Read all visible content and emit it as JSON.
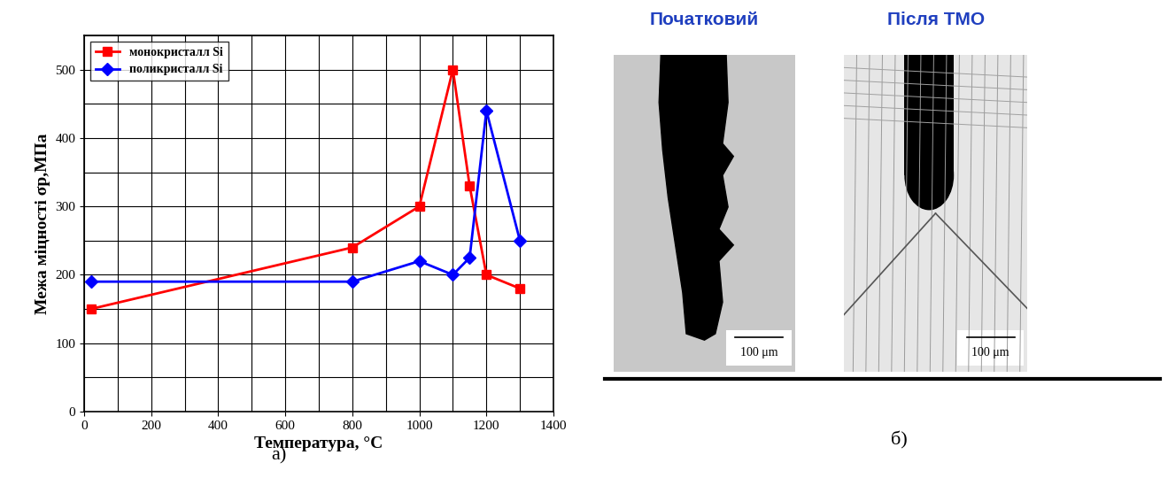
{
  "chart_data": {
    "type": "line",
    "x_label": "Температура, °C",
    "y_label": "Межа міцності σр,МПа",
    "xlim": [
      0,
      1400
    ],
    "xticks": [
      0,
      200,
      400,
      600,
      800,
      1000,
      1200,
      1400
    ],
    "ylim": [
      0,
      550
    ],
    "yticks": [
      0,
      100,
      200,
      300,
      400,
      500
    ],
    "grid": true,
    "legend": "upper left",
    "series": [
      {
        "name": "монокристалл Si",
        "color": "#ff0000",
        "marker": "square",
        "line_style": "solid",
        "x": [
          20,
          800,
          1000,
          1100,
          1150,
          1200,
          1300
        ],
        "values": [
          150,
          240,
          300,
          500,
          330,
          200,
          180
        ]
      },
      {
        "name": "поликристалл Si",
        "color": "#0000ff",
        "marker": "diamond",
        "line_style": "solid",
        "x": [
          20,
          800,
          1000,
          1100,
          1150,
          1200,
          1300
        ],
        "values": [
          190,
          190,
          220,
          200,
          225,
          440,
          250
        ]
      }
    ]
  },
  "panel_labels": [
    "а)",
    "б)"
  ],
  "micrographs": [
    {
      "title": "Початковий",
      "scale_bar": "100 μm"
    },
    {
      "title": "Після ТМО",
      "scale_bar": "100 μm"
    }
  ]
}
